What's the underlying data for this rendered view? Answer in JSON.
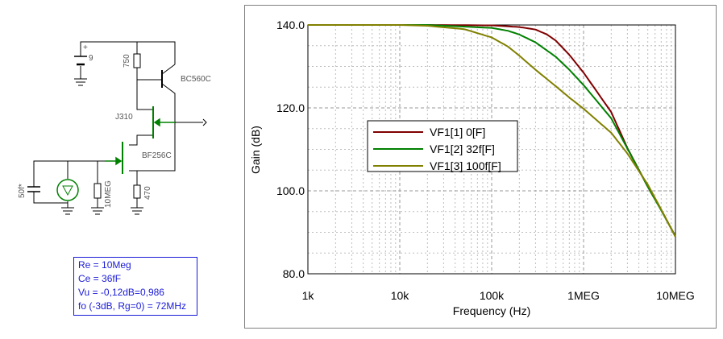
{
  "schematic": {
    "battery_label": "9",
    "r_collector_label": "750",
    "q1_label": "BC560C",
    "j1_label": "J310",
    "j2_label": "BF256C",
    "c_label": "50f*",
    "r_gate_label": "10MEG",
    "r_source_label": "470",
    "wire_color": "#000000",
    "jfet_color": "#008000"
  },
  "info": {
    "line1": "Re = 10Meg",
    "line2": "Ce = 36fF",
    "line3": "Vu = -0,12dB=0,986",
    "line4": "fo (-3dB, Rg=0) = 72MHz"
  },
  "chart_data": {
    "type": "line",
    "xscale": "log",
    "xlim": [
      1000,
      10000000
    ],
    "ylim": [
      80,
      140
    ],
    "xlabel": "Frequency (Hz)",
    "ylabel": "Gain (dB)",
    "xticks": [
      {
        "value": 1000,
        "label": "1k"
      },
      {
        "value": 10000,
        "label": "10k"
      },
      {
        "value": 100000,
        "label": "100k"
      },
      {
        "value": 1000000,
        "label": "1MEG"
      },
      {
        "value": 10000000,
        "label": "10MEG"
      }
    ],
    "yticks": [
      {
        "value": 80,
        "label": "80.0"
      },
      {
        "value": 100,
        "label": "100.0"
      },
      {
        "value": 120,
        "label": "120.0"
      },
      {
        "value": 140,
        "label": "140.0"
      }
    ],
    "grid": true,
    "legend_position": "center-left",
    "series": [
      {
        "name": "VF1[1]  0[F]",
        "color": "#800000",
        "x": [
          1000,
          20000,
          100000,
          200000,
          300000,
          400000,
          500000,
          700000,
          1000000,
          2000000,
          3000000,
          5000000,
          7000000,
          10000000
        ],
        "y": [
          140.0,
          140.0,
          139.9,
          139.5,
          138.9,
          137.7,
          136.2,
          132.8,
          128.5,
          119.0,
          110.3,
          101.0,
          95.4,
          89.0
        ]
      },
      {
        "name": "VF1[2]  32f[F]",
        "color": "#008000",
        "x": [
          1000,
          20000,
          100000,
          150000,
          200000,
          300000,
          500000,
          700000,
          1000000,
          2000000,
          3000000,
          5000000,
          7000000,
          10000000
        ],
        "y": [
          140.0,
          140.0,
          139.3,
          138.6,
          137.7,
          135.8,
          132.3,
          129.2,
          125.5,
          117.5,
          110.2,
          101.0,
          95.3,
          89.0
        ]
      },
      {
        "name": "VF1[3]  100f[F]",
        "color": "#808000",
        "x": [
          1000,
          10000,
          20000,
          50000,
          100000,
          150000,
          200000,
          300000,
          500000,
          700000,
          1000000,
          2000000,
          3000000,
          5000000,
          7000000,
          10000000
        ],
        "y": [
          140.0,
          140.0,
          139.8,
          139.0,
          137.0,
          134.8,
          132.6,
          129.2,
          125.2,
          122.5,
          119.8,
          114.0,
          109.0,
          101.5,
          95.5,
          88.9
        ]
      }
    ]
  }
}
